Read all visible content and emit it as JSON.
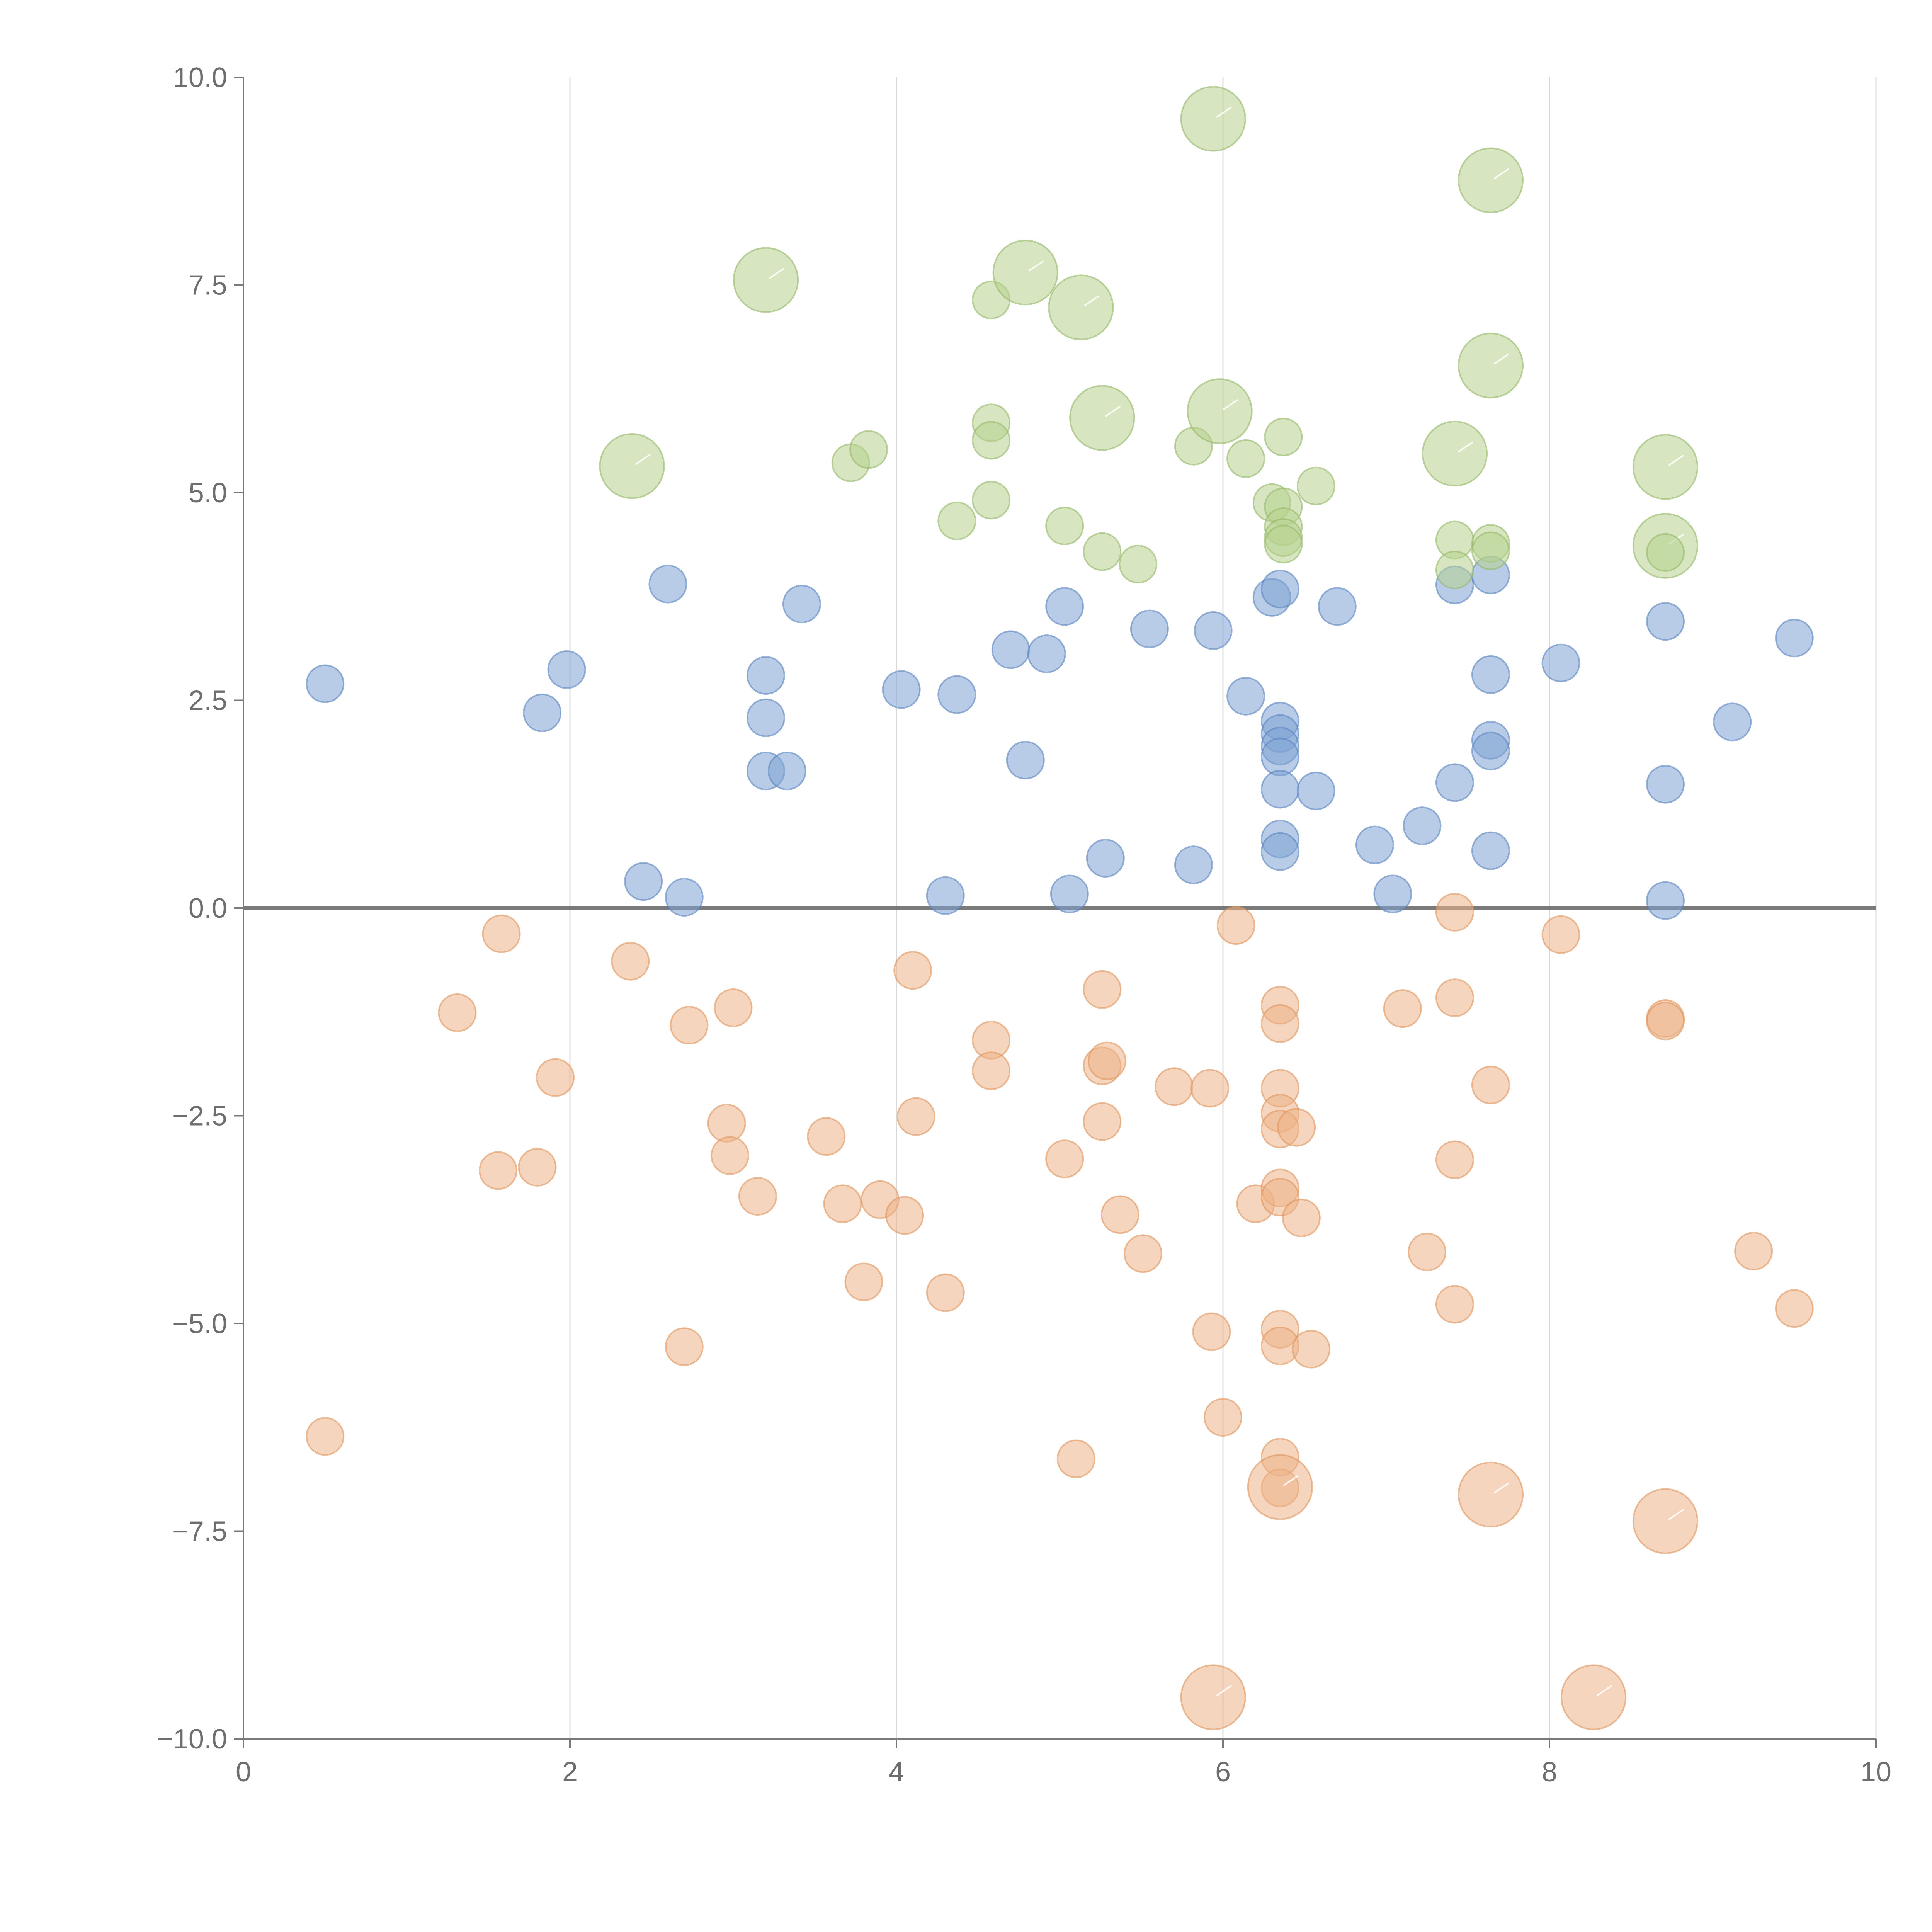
{
  "chart_data": {
    "type": "scatter",
    "title": "",
    "xlabel": "",
    "ylabel": "",
    "xlim": [
      0,
      10
    ],
    "ylim": [
      -10,
      10
    ],
    "x_ticks": [
      "0",
      "2",
      "4",
      "6",
      "8",
      "10"
    ],
    "y_ticks": [
      "−10.0",
      "−7.5",
      "−5.0",
      "−2.5",
      "0.0",
      "2.5",
      "5.0",
      "7.5",
      "10.0"
    ],
    "grid": "vertical lines at x ticks",
    "zero_line": true,
    "legend": "none",
    "series": [
      {
        "color": "#7ea3d3",
        "stroke": "#5b84bf",
        "points": [
          [
            0.5,
            2.7,
            1
          ],
          [
            1.83,
            2.35,
            1
          ],
          [
            1.98,
            2.87,
            1
          ],
          [
            2.6,
            3.9,
            1
          ],
          [
            2.45,
            0.32,
            1
          ],
          [
            2.7,
            0.13,
            1
          ],
          [
            3.2,
            2.8,
            1
          ],
          [
            3.2,
            2.29,
            1
          ],
          [
            3.2,
            1.65,
            1
          ],
          [
            3.33,
            1.65,
            1
          ],
          [
            3.42,
            3.66,
            1
          ],
          [
            4.03,
            2.63,
            1
          ],
          [
            4.3,
            0.15,
            1
          ],
          [
            4.37,
            2.57,
            1
          ],
          [
            4.7,
            3.11,
            1
          ],
          [
            4.79,
            1.78,
            1
          ],
          [
            4.92,
            3.06,
            1
          ],
          [
            5.03,
            3.63,
            1
          ],
          [
            5.06,
            0.17,
            1
          ],
          [
            5.28,
            0.6,
            1
          ],
          [
            5.55,
            3.36,
            1
          ],
          [
            5.82,
            0.52,
            1
          ],
          [
            5.94,
            3.34,
            1
          ],
          [
            6.14,
            2.55,
            1
          ],
          [
            6.3,
            3.74,
            1
          ],
          [
            6.35,
            3.84,
            1
          ],
          [
            6.35,
            2.25,
            1
          ],
          [
            6.35,
            2.1,
            1
          ],
          [
            6.35,
            1.95,
            1
          ],
          [
            6.35,
            1.82,
            1
          ],
          [
            6.35,
            1.43,
            1
          ],
          [
            6.35,
            0.83,
            1
          ],
          [
            6.35,
            0.68,
            1
          ],
          [
            6.57,
            1.41,
            1
          ],
          [
            6.7,
            3.63,
            1
          ],
          [
            6.93,
            0.76,
            1
          ],
          [
            7.04,
            0.17,
            1
          ],
          [
            7.22,
            0.99,
            1
          ],
          [
            7.42,
            3.89,
            1
          ],
          [
            7.42,
            1.51,
            1
          ],
          [
            7.64,
            4.01,
            1
          ],
          [
            7.64,
            2.81,
            1
          ],
          [
            7.64,
            2.02,
            1
          ],
          [
            7.64,
            1.89,
            1
          ],
          [
            7.64,
            0.69,
            1
          ],
          [
            8.07,
            2.95,
            1
          ],
          [
            8.71,
            3.45,
            1
          ],
          [
            8.71,
            1.49,
            1
          ],
          [
            8.71,
            0.09,
            1
          ],
          [
            9.12,
            2.24,
            1
          ],
          [
            9.5,
            3.25,
            1
          ]
        ]
      },
      {
        "color": "#edb287",
        "stroke": "#e0955d",
        "points": [
          [
            0.5,
            -6.36,
            1
          ],
          [
            1.31,
            -1.26,
            1
          ],
          [
            1.56,
            -3.16,
            1
          ],
          [
            1.58,
            -0.31,
            1
          ],
          [
            1.8,
            -3.12,
            1
          ],
          [
            1.91,
            -2.04,
            1
          ],
          [
            2.37,
            -0.64,
            1
          ],
          [
            2.7,
            -5.28,
            1
          ],
          [
            2.73,
            -1.41,
            1
          ],
          [
            2.96,
            -2.59,
            1
          ],
          [
            2.98,
            -2.98,
            1
          ],
          [
            3.0,
            -1.2,
            1
          ],
          [
            3.15,
            -3.47,
            1
          ],
          [
            3.57,
            -2.75,
            1
          ],
          [
            3.67,
            -3.56,
            1
          ],
          [
            3.8,
            -4.5,
            1
          ],
          [
            3.9,
            -3.51,
            1
          ],
          [
            4.05,
            -3.7,
            1
          ],
          [
            4.1,
            -0.75,
            1
          ],
          [
            4.12,
            -2.51,
            1
          ],
          [
            4.3,
            -4.63,
            1
          ],
          [
            4.58,
            -1.59,
            1
          ],
          [
            4.58,
            -1.96,
            1
          ],
          [
            5.03,
            -3.02,
            1
          ],
          [
            5.1,
            -6.63,
            1
          ],
          [
            5.26,
            -0.98,
            1
          ],
          [
            5.26,
            -1.9,
            1
          ],
          [
            5.29,
            -1.84,
            1
          ],
          [
            5.26,
            -2.57,
            1
          ],
          [
            5.37,
            -3.69,
            1
          ],
          [
            5.51,
            -4.16,
            1
          ],
          [
            5.7,
            -2.15,
            1
          ],
          [
            5.92,
            -2.17,
            1
          ],
          [
            5.93,
            -5.1,
            1
          ],
          [
            6.0,
            -6.13,
            1
          ],
          [
            6.08,
            -0.21,
            1
          ],
          [
            6.2,
            -3.56,
            1
          ],
          [
            6.35,
            -1.17,
            1
          ],
          [
            6.35,
            -1.39,
            1
          ],
          [
            6.35,
            -2.17,
            1
          ],
          [
            6.35,
            -2.47,
            1
          ],
          [
            6.35,
            -2.66,
            1
          ],
          [
            6.45,
            -2.64,
            1
          ],
          [
            6.35,
            -3.37,
            1
          ],
          [
            6.35,
            -3.48,
            1
          ],
          [
            6.48,
            -3.73,
            1
          ],
          [
            6.35,
            -5.07,
            1
          ],
          [
            6.35,
            -5.27,
            1
          ],
          [
            6.54,
            -5.31,
            1
          ],
          [
            6.35,
            -6.61,
            1
          ],
          [
            6.35,
            -6.98,
            1
          ],
          [
            6.35,
            -6.97,
            3
          ],
          [
            7.1,
            -1.21,
            1
          ],
          [
            7.25,
            -4.14,
            1
          ],
          [
            7.42,
            -0.05,
            1
          ],
          [
            7.42,
            -1.08,
            1
          ],
          [
            7.42,
            -3.03,
            1
          ],
          [
            7.42,
            -4.77,
            1
          ],
          [
            7.64,
            -2.13,
            1
          ],
          [
            7.64,
            -7.06,
            3
          ],
          [
            8.07,
            -0.32,
            1
          ],
          [
            8.71,
            -1.33,
            1
          ],
          [
            8.71,
            -1.36,
            1
          ],
          [
            8.71,
            -7.38,
            3
          ],
          [
            9.25,
            -4.13,
            1
          ],
          [
            9.5,
            -4.82,
            1
          ],
          [
            5.94,
            -9.5,
            3
          ],
          [
            8.27,
            -9.5,
            3
          ]
        ]
      },
      {
        "color": "#b7d18e",
        "stroke": "#95b868",
        "points": [
          [
            2.38,
            5.32,
            3
          ],
          [
            3.2,
            7.56,
            3
          ],
          [
            3.72,
            5.36,
            1
          ],
          [
            3.83,
            5.52,
            1
          ],
          [
            4.37,
            4.66,
            1
          ],
          [
            4.58,
            7.32,
            1
          ],
          [
            4.58,
            5.84,
            1
          ],
          [
            4.58,
            5.63,
            1
          ],
          [
            4.58,
            4.91,
            1
          ],
          [
            4.79,
            7.65,
            3
          ],
          [
            5.03,
            4.6,
            1
          ],
          [
            5.13,
            7.23,
            3
          ],
          [
            5.26,
            4.29,
            1
          ],
          [
            5.26,
            5.9,
            3
          ],
          [
            5.48,
            4.14,
            1
          ],
          [
            5.82,
            5.56,
            1
          ],
          [
            5.94,
            9.5,
            3
          ],
          [
            5.98,
            5.98,
            3
          ],
          [
            6.14,
            5.41,
            1
          ],
          [
            6.3,
            4.88,
            1
          ],
          [
            6.37,
            4.83,
            1
          ],
          [
            6.37,
            4.59,
            1
          ],
          [
            6.37,
            4.46,
            1
          ],
          [
            6.37,
            4.38,
            1
          ],
          [
            6.37,
            5.67,
            1
          ],
          [
            6.57,
            5.08,
            1
          ],
          [
            7.42,
            5.47,
            3
          ],
          [
            7.42,
            4.43,
            1
          ],
          [
            7.42,
            4.07,
            1
          ],
          [
            7.64,
            8.76,
            3
          ],
          [
            7.64,
            6.53,
            3
          ],
          [
            7.64,
            4.39,
            1
          ],
          [
            7.64,
            4.3,
            1
          ],
          [
            8.71,
            5.31,
            3
          ],
          [
            8.71,
            4.36,
            3
          ],
          [
            8.71,
            4.28,
            1
          ]
        ]
      }
    ]
  }
}
